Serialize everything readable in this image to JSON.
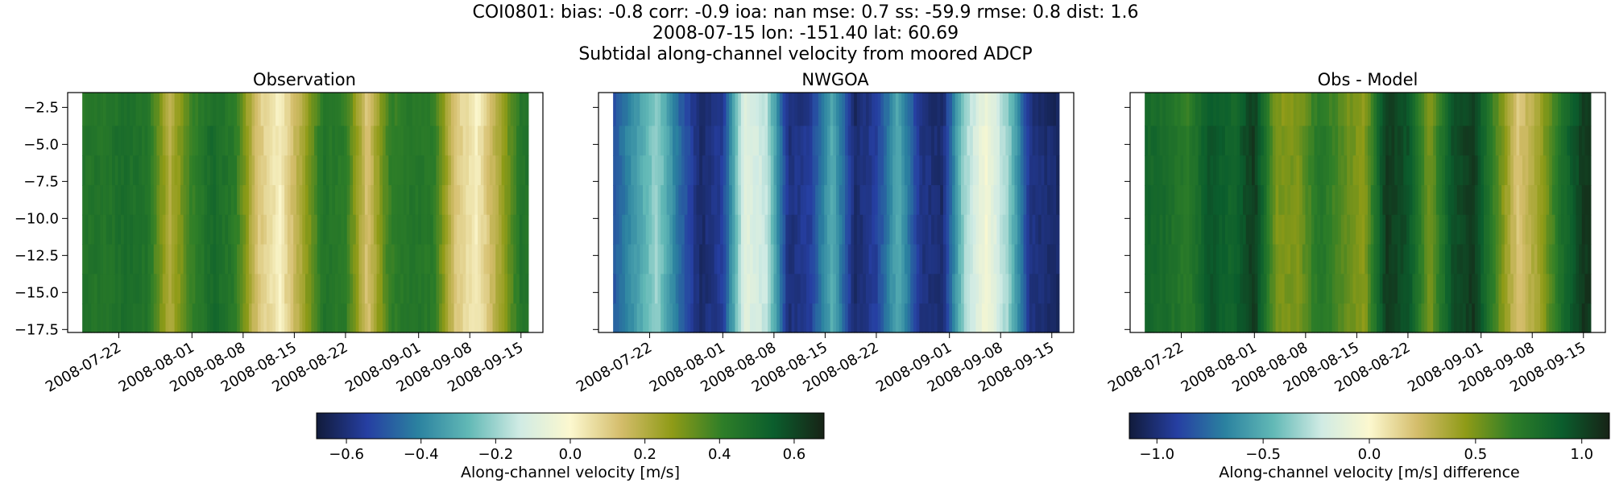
{
  "figure": {
    "title_lines": [
      "COI0801: bias: -0.8  corr: -0.9  ioa: nan  mse: 0.7  ss: -59.9  rmse: 0.8  dist: 1.6",
      "2008-07-15 lon: -151.40 lat: 60.69",
      "Subtidal along-channel velocity from moored ADCP"
    ]
  },
  "chart_data": [
    {
      "type": "heatmap",
      "title": "Observation",
      "xlabel": "",
      "ylabel": "",
      "x_ticks": [
        "2008-07-22",
        "2008-08-01",
        "2008-08-08",
        "2008-08-15",
        "2008-08-22",
        "2008-09-01",
        "2008-09-08",
        "2008-09-15"
      ],
      "y_ticks": [
        "-2.5",
        "-5.0",
        "-7.5",
        "-10.0",
        "-12.5",
        "-15.0",
        "-17.5"
      ],
      "ylim": [
        -17.7,
        -1.5
      ],
      "x_range": [
        "2008-07-15",
        "2008-09-18"
      ],
      "data_start": "2008-07-17",
      "data_end": "2008-09-16",
      "colorscale_ref": "velocity",
      "profile_days": [
        0,
        3,
        6,
        9,
        12,
        15,
        18,
        21,
        24,
        27,
        30,
        33,
        36,
        39,
        42,
        45,
        48,
        51,
        54,
        57,
        60,
        61
      ],
      "profile_values": [
        0.45,
        0.45,
        0.48,
        0.45,
        0.2,
        0.4,
        0.5,
        0.42,
        0.12,
        0.02,
        0.22,
        0.45,
        0.42,
        0.12,
        0.4,
        0.45,
        0.43,
        0.12,
        0.02,
        0.22,
        0.45,
        0.45
      ]
    },
    {
      "type": "heatmap",
      "title": "NWGOA",
      "xlabel": "",
      "ylabel": "",
      "x_ticks": [
        "2008-07-22",
        "2008-08-01",
        "2008-08-08",
        "2008-08-15",
        "2008-08-22",
        "2008-09-01",
        "2008-09-08",
        "2008-09-15"
      ],
      "y_ticks": [
        "-2.5",
        "-5.0",
        "-7.5",
        "-10.0",
        "-12.5",
        "-15.0",
        "-17.5"
      ],
      "ylim": [
        -17.7,
        -1.5
      ],
      "x_range": [
        "2008-07-15",
        "2008-09-18"
      ],
      "data_start": "2008-07-17",
      "data_end": "2008-09-16",
      "colorscale_ref": "velocity",
      "profile_days": [
        0,
        3,
        6,
        9,
        12,
        15,
        18,
        21,
        24,
        27,
        30,
        33,
        36,
        39,
        42,
        45,
        48,
        51,
        54,
        57,
        60,
        61
      ],
      "profile_values": [
        -0.5,
        -0.35,
        -0.2,
        -0.45,
        -0.62,
        -0.55,
        -0.08,
        -0.15,
        -0.6,
        -0.55,
        -0.3,
        -0.62,
        -0.55,
        -0.3,
        -0.58,
        -0.62,
        -0.2,
        -0.03,
        -0.2,
        -0.58,
        -0.62,
        -0.62
      ]
    },
    {
      "type": "heatmap",
      "title": "Obs - Model",
      "xlabel": "",
      "ylabel": "",
      "x_ticks": [
        "2008-07-22",
        "2008-08-01",
        "2008-08-08",
        "2008-08-15",
        "2008-08-22",
        "2008-09-01",
        "2008-09-08",
        "2008-09-15"
      ],
      "y_ticks": [
        "-2.5",
        "-5.0",
        "-7.5",
        "-10.0",
        "-12.5",
        "-15.0",
        "-17.5"
      ],
      "ylim": [
        -17.7,
        -1.5
      ],
      "x_range": [
        "2008-07-15",
        "2008-09-18"
      ],
      "data_start": "2008-07-17",
      "data_end": "2008-09-16",
      "colorscale_ref": "difference",
      "profile_days": [
        0,
        3,
        6,
        9,
        12,
        15,
        18,
        21,
        24,
        27,
        30,
        33,
        36,
        39,
        42,
        45,
        48,
        51,
        54,
        57,
        60,
        61
      ],
      "profile_values": [
        0.85,
        0.8,
        0.7,
        0.95,
        0.85,
        1.05,
        0.5,
        0.5,
        0.75,
        0.58,
        0.45,
        1.05,
        0.95,
        0.5,
        0.95,
        1.05,
        0.62,
        0.2,
        0.4,
        0.78,
        1.05,
        1.05
      ]
    }
  ],
  "colorbars": [
    {
      "label": "Along-channel velocity [m/s]",
      "ticks": [
        "−0.6",
        "−0.4",
        "−0.2",
        "0.0",
        "0.2",
        "0.4",
        "0.6"
      ],
      "tick_values": [
        -0.6,
        -0.4,
        -0.2,
        0.0,
        0.2,
        0.4,
        0.6
      ],
      "vmin": -0.68,
      "vmax": 0.68
    },
    {
      "label": "Along-channel velocity [m/s] difference",
      "ticks": [
        "−1.0",
        "−0.5",
        "0.0",
        "0.5",
        "1.0"
      ],
      "tick_values": [
        -1.0,
        -0.5,
        0.0,
        0.5,
        1.0
      ],
      "vmin": -1.13,
      "vmax": 1.13
    }
  ],
  "colormap": {
    "name": "delta",
    "stops": [
      "#111b3b",
      "#263fa2",
      "#2b82a0",
      "#62b9b6",
      "#d0ebe4",
      "#fcf8cf",
      "#d4bd6b",
      "#8f9b17",
      "#2e7e28",
      "#0b5e2d",
      "#172316"
    ]
  }
}
